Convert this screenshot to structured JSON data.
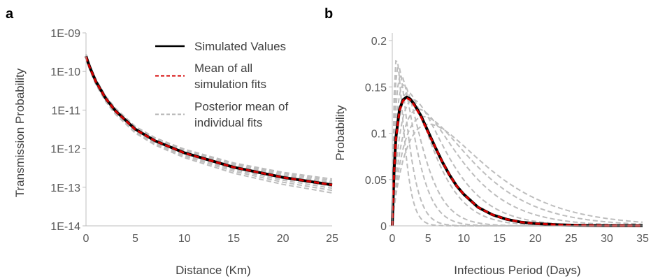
{
  "chart_data": [
    {
      "panel_letter": "a",
      "type": "line",
      "xlabel": "Distance (Km)",
      "ylabel": "Transmission Probability",
      "xlim": [
        0,
        25
      ],
      "ylim": [
        1e-14,
        1e-09
      ],
      "y_scale": "log",
      "x_ticks": [
        0,
        5,
        10,
        15,
        20,
        25
      ],
      "y_ticks": [
        1e-14,
        1e-13,
        1e-12,
        1e-11,
        1e-10,
        1e-09
      ],
      "y_tick_labels": [
        "1E-14",
        "1E-13",
        "1E-12",
        "1E-11",
        "1E-10",
        "1E-09"
      ],
      "grid": false,
      "legend_placement": "top-right",
      "legend": [
        {
          "label_lines": [
            "Simulated Values"
          ],
          "style": "solid",
          "color": "#000000"
        },
        {
          "label_lines": [
            "Mean of all",
            "simulation fits"
          ],
          "style": "dashed",
          "color": "#d40000"
        },
        {
          "label_lines": [
            "Posterior mean of",
            "individual fits"
          ],
          "style": "dashed",
          "color": "#b3b3b3"
        }
      ],
      "series": [
        {
          "x": [
            0,
            0.25,
            0.5,
            1,
            2,
            3,
            5,
            7,
            10,
            15,
            20,
            25
          ],
          "y": [
            2.5e-10,
            1.6e-10,
            1.1e-10,
            5.5e-11,
            2e-11,
            9.5e-12,
            3.2e-12,
            1.6e-12,
            7.8e-13,
            3.3e-13,
            1.8e-13,
            1.15e-13
          ],
          "color": "#000000",
          "style": "solid"
        },
        {
          "x": [
            0,
            0.25,
            0.5,
            1,
            2,
            3,
            5,
            7,
            10,
            15,
            20,
            25
          ],
          "y": [
            2.4e-10,
            1.55e-10,
            1.08e-10,
            5.4e-11,
            2e-11,
            9.4e-12,
            3.15e-12,
            1.6e-12,
            7.7e-13,
            3.3e-13,
            1.8e-13,
            1.15e-13
          ],
          "color": "#d40000",
          "style": "dashed"
        }
      ],
      "individual_fit_scales": [
        0.62,
        0.72,
        0.82,
        0.92,
        1.08,
        1.18,
        1.3,
        1.42
      ],
      "individual_fit_color": "#bdbdbd"
    },
    {
      "panel_letter": "b",
      "type": "line",
      "xlabel": "Infectious Period (Days)",
      "ylabel": "Probability",
      "xlim": [
        0,
        35
      ],
      "ylim": [
        0,
        0.2
      ],
      "x_ticks": [
        0,
        5,
        10,
        15,
        20,
        25,
        30,
        35
      ],
      "y_ticks": [
        0,
        0.05,
        0.1,
        0.15,
        0.2
      ],
      "y_tick_labels": [
        "0",
        "0.05",
        "0.1",
        "0.15",
        "0.2"
      ],
      "grid": false,
      "series": [
        {
          "x": [
            0,
            0.25,
            0.5,
            1,
            1.5,
            2,
            2.5,
            3,
            4,
            5,
            6,
            7,
            8,
            9,
            10,
            12,
            14,
            16,
            18,
            20,
            23,
            26,
            30,
            35
          ],
          "y": [
            0,
            0.06,
            0.095,
            0.125,
            0.136,
            0.139,
            0.137,
            0.132,
            0.119,
            0.102,
            0.085,
            0.069,
            0.055,
            0.043,
            0.034,
            0.02,
            0.012,
            0.007,
            0.004,
            0.0025,
            0.0012,
            0.0006,
            0.0002,
            0.0001
          ],
          "color": "#000000",
          "style": "solid"
        },
        {
          "x": [
            0,
            0.25,
            0.5,
            1,
            1.5,
            2,
            2.5,
            3,
            4,
            5,
            6,
            7,
            8,
            9,
            10,
            12,
            14,
            16,
            18,
            20,
            23,
            26,
            30,
            35
          ],
          "y": [
            0,
            0.058,
            0.093,
            0.124,
            0.135,
            0.138,
            0.136,
            0.131,
            0.118,
            0.101,
            0.085,
            0.069,
            0.055,
            0.043,
            0.034,
            0.02,
            0.012,
            0.007,
            0.004,
            0.0025,
            0.0012,
            0.0006,
            0.0002,
            0.0001
          ],
          "color": "#d40000",
          "style": "dashed"
        }
      ],
      "individual_fits": [
        {
          "peak_x": 0.5,
          "peak_y": 0.178
        },
        {
          "peak_x": 0.7,
          "peak_y": 0.17
        },
        {
          "peak_x": 1.0,
          "peak_y": 0.16
        },
        {
          "peak_x": 1.3,
          "peak_y": 0.15
        },
        {
          "peak_x": 1.8,
          "peak_y": 0.142
        },
        {
          "peak_x": 2.4,
          "peak_y": 0.134
        },
        {
          "peak_x": 3.0,
          "peak_y": 0.124
        },
        {
          "peak_x": 3.6,
          "peak_y": 0.116
        },
        {
          "peak_x": 4.2,
          "peak_y": 0.108
        }
      ],
      "individual_fit_color": "#bdbdbd"
    }
  ]
}
